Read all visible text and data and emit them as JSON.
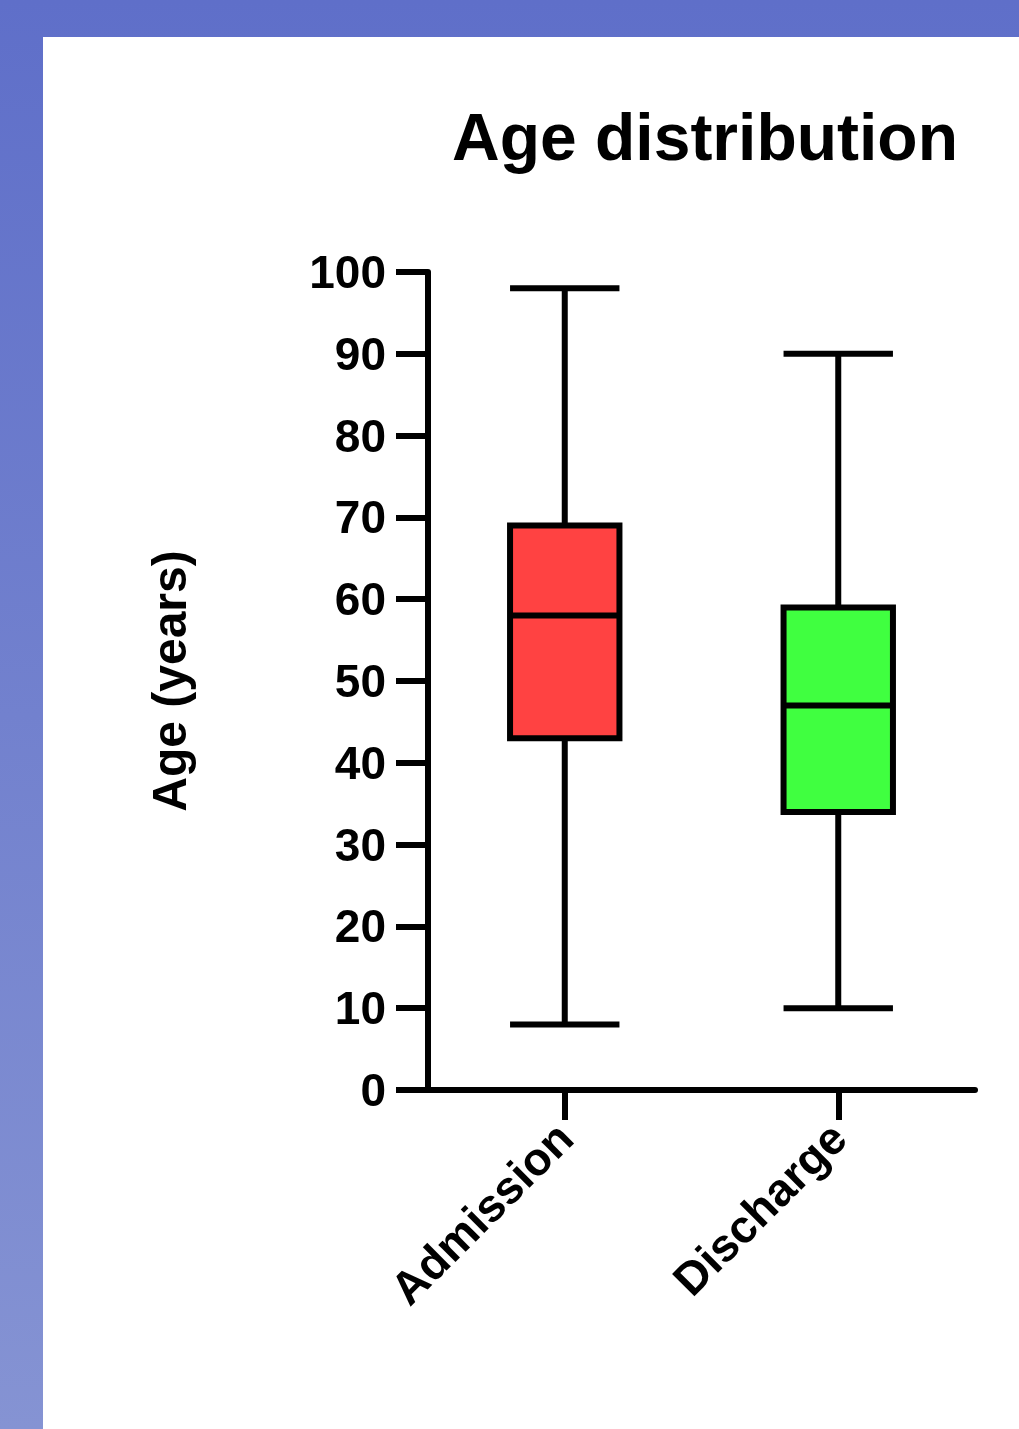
{
  "chart_data": {
    "type": "box",
    "title": "Age distribution",
    "ylabel": "Age (years)",
    "categories": [
      "Admission",
      "Discharge"
    ],
    "boxes": [
      {
        "low": 8,
        "q1": 43,
        "median": 58,
        "q3": 69,
        "high": 98
      },
      {
        "low": 10,
        "q1": 34,
        "median": 47,
        "q3": 59,
        "high": 90
      }
    ],
    "colors": [
      "#ff4242",
      "#40ff40"
    ],
    "ylim": [
      0,
      100
    ],
    "yticks": [
      0,
      10,
      20,
      30,
      40,
      50,
      60,
      70,
      80,
      90,
      100
    ],
    "grid": false
  }
}
